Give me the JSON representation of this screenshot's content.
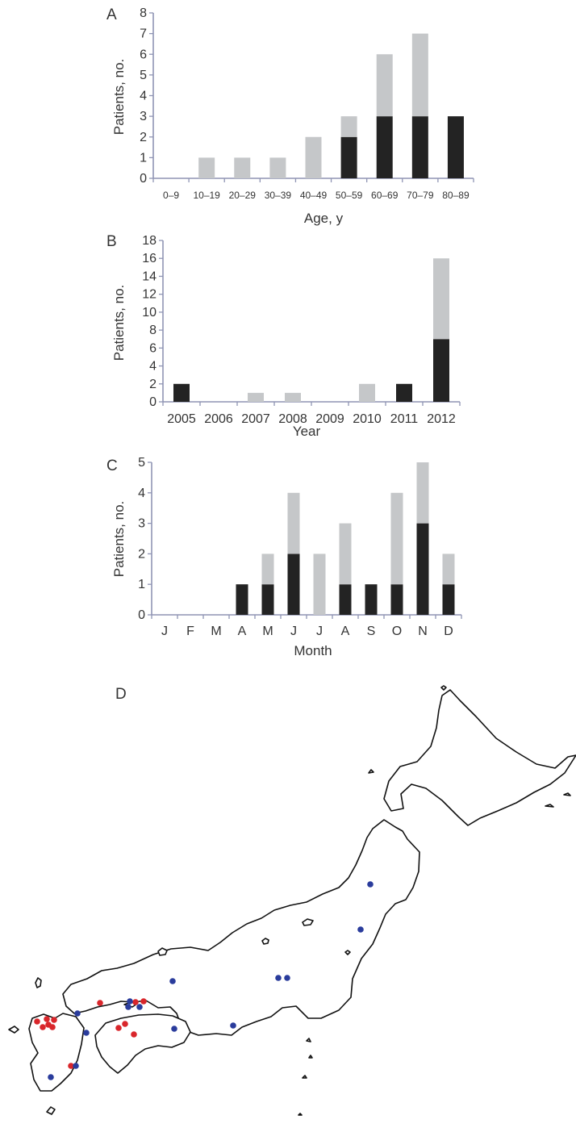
{
  "colors": {
    "bar_dark": "#232323",
    "bar_light": "#c5c7c9",
    "axis": "#8f94b4",
    "land": "#ffffff",
    "coast": "#111111",
    "dot_red": "#d9262b",
    "dot_blue": "#2a3c9c"
  },
  "chart_data": [
    {
      "panel": "A",
      "type": "bar",
      "stacked": true,
      "categories": [
        "0–9",
        "10–19",
        "20–29",
        "30–39",
        "40–49",
        "50–59",
        "60–69",
        "70–79",
        "80–89"
      ],
      "series": [
        {
          "color": "dark",
          "values": [
            0,
            0,
            0,
            0,
            0,
            2,
            3,
            3,
            3
          ]
        },
        {
          "color": "light",
          "values": [
            0,
            1,
            1,
            1,
            2,
            1,
            3,
            4,
            0
          ]
        }
      ],
      "xlabel": "Age, y",
      "ylabel": "Patients, no.",
      "ylim": [
        0,
        8
      ],
      "yticks": [
        "0",
        "1",
        "2",
        "3",
        "4",
        "5",
        "6",
        "7",
        "8"
      ]
    },
    {
      "panel": "B",
      "type": "bar",
      "stacked": true,
      "categories": [
        "2005",
        "2006",
        "2007",
        "2008",
        "2009",
        "2010",
        "2011",
        "2012"
      ],
      "series": [
        {
          "color": "dark",
          "values": [
            2,
            0,
            0,
            0,
            0,
            0,
            2,
            7
          ]
        },
        {
          "color": "light",
          "values": [
            0,
            0,
            1,
            1,
            0,
            2,
            0,
            9
          ]
        }
      ],
      "xlabel": "Year",
      "ylabel": "Patients, no.",
      "ylim": [
        0,
        18
      ],
      "yticks": [
        "0",
        "2",
        "4",
        "6",
        "8",
        "10",
        "12",
        "14",
        "16",
        "18"
      ]
    },
    {
      "panel": "C",
      "type": "bar",
      "stacked": true,
      "categories": [
        "J",
        "F",
        "M",
        "A",
        "M",
        "J",
        "J",
        "A",
        "S",
        "O",
        "N",
        "D"
      ],
      "series": [
        {
          "color": "dark",
          "values": [
            0,
            0,
            0,
            1,
            1,
            2,
            0,
            1,
            1,
            1,
            3,
            1
          ]
        },
        {
          "color": "light",
          "values": [
            0,
            0,
            0,
            0,
            1,
            2,
            2,
            2,
            0,
            3,
            2,
            1
          ]
        }
      ],
      "xlabel": "Month",
      "ylabel": "Patients, no.",
      "ylim": [
        0,
        5
      ],
      "yticks": [
        "0",
        "1",
        "2",
        "3",
        "4",
        "5"
      ]
    }
  ],
  "map": {
    "panel": "D",
    "marker_counts": {
      "red": 13,
      "blue": 14
    }
  }
}
